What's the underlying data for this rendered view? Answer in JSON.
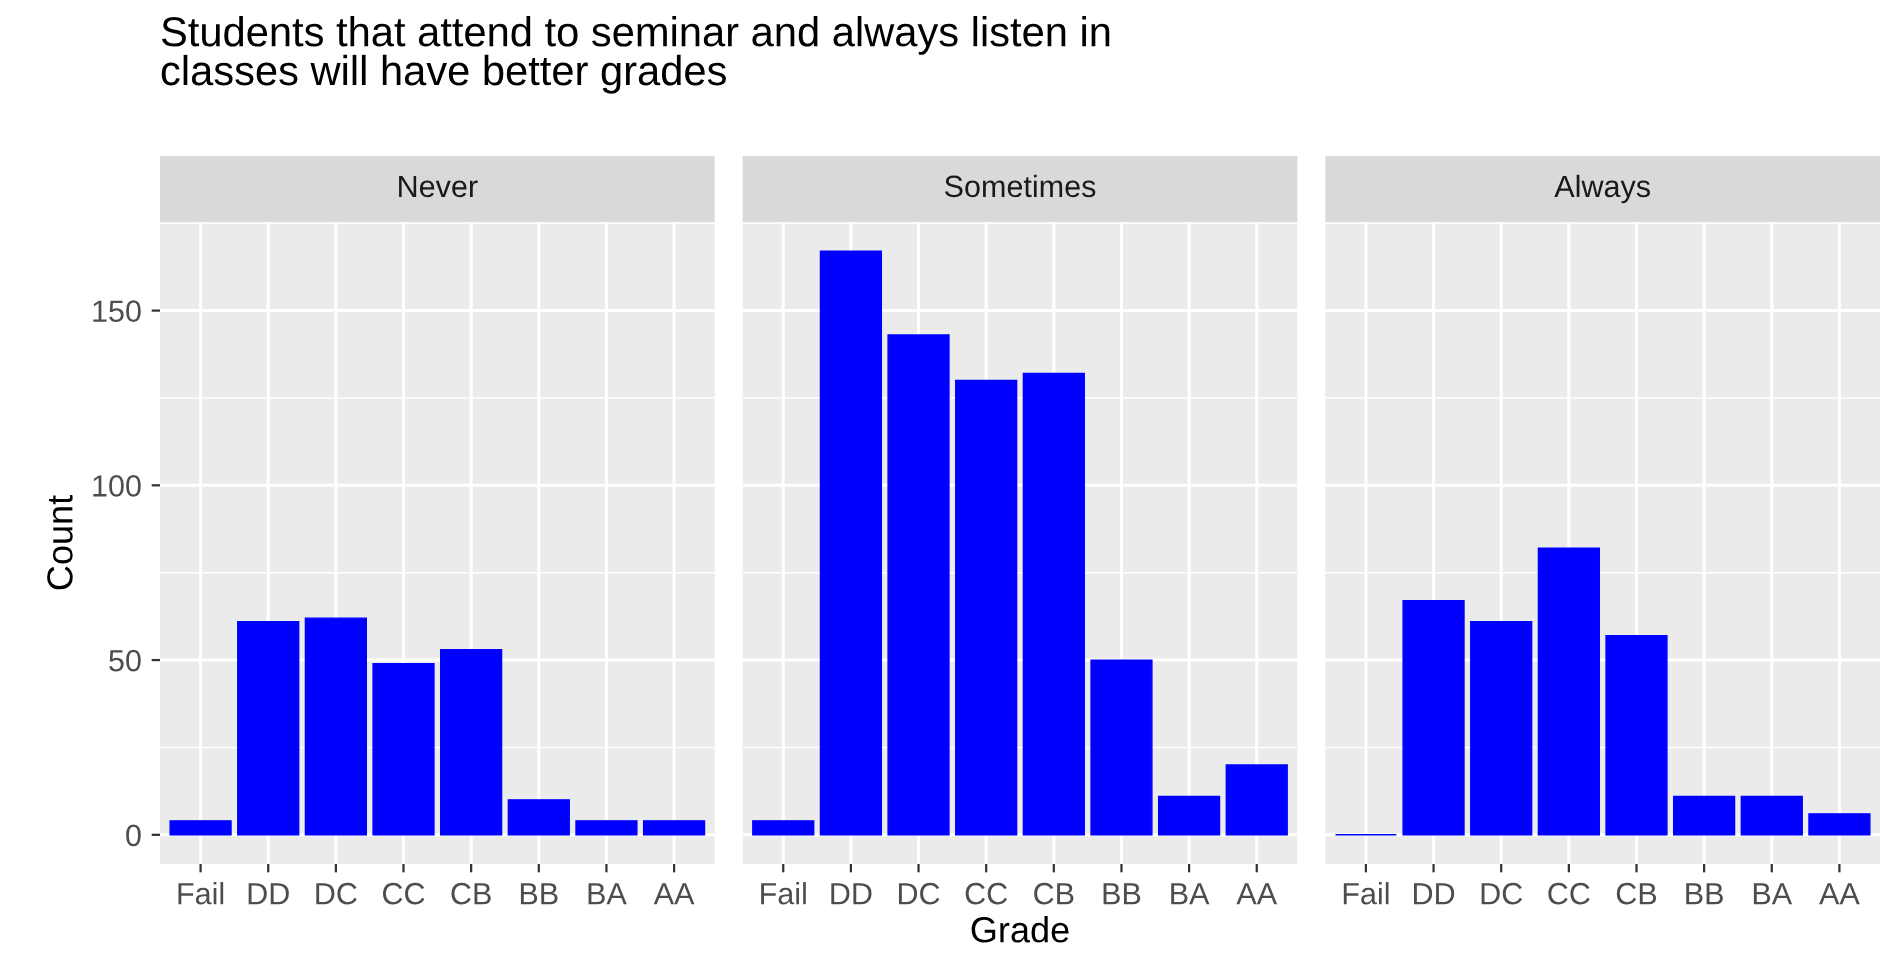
{
  "chart_data": [
    {
      "type": "bar",
      "title": "Never",
      "ylabel": "Count",
      "annotations": [
        "Students that attend to seminar and always listen in\nclasses will have better grades"
      ],
      "categories": [
        "Fail",
        "DD",
        "DC",
        "CC",
        "CB",
        "BB",
        "BA",
        "AA"
      ],
      "values": [
        4,
        61,
        62,
        49,
        53,
        10,
        4,
        4
      ],
      "color": "#0000ff",
      "ylim": [
        -8.35,
        175.35
      ],
      "yticks": [
        0,
        50,
        100,
        150
      ],
      "grid": true
    },
    {
      "type": "bar",
      "title": "Sometimes",
      "xlabel": "Grade",
      "categories": [
        "Fail",
        "DD",
        "DC",
        "CC",
        "CB",
        "BB",
        "BA",
        "AA"
      ],
      "values": [
        4,
        167,
        143,
        130,
        132,
        50,
        11,
        20
      ],
      "color": "#0000ff",
      "ylim": [
        -8.35,
        175.35
      ],
      "yticks": [
        0,
        50,
        100,
        150
      ],
      "grid": true,
      "tick_labels": "x"
    },
    {
      "type": "bar",
      "title": "Always",
      "categories": [
        "Fail",
        "DD",
        "DC",
        "CC",
        "CB",
        "BB",
        "BA",
        "AA"
      ],
      "values": [
        0,
        67,
        61,
        82,
        57,
        11,
        11,
        6
      ],
      "color": "#0000ff",
      "ylim": [
        -8.35,
        175.35
      ],
      "yticks": [
        0,
        50,
        100,
        150
      ],
      "grid": true,
      "tick_labels": "x"
    }
  ]
}
